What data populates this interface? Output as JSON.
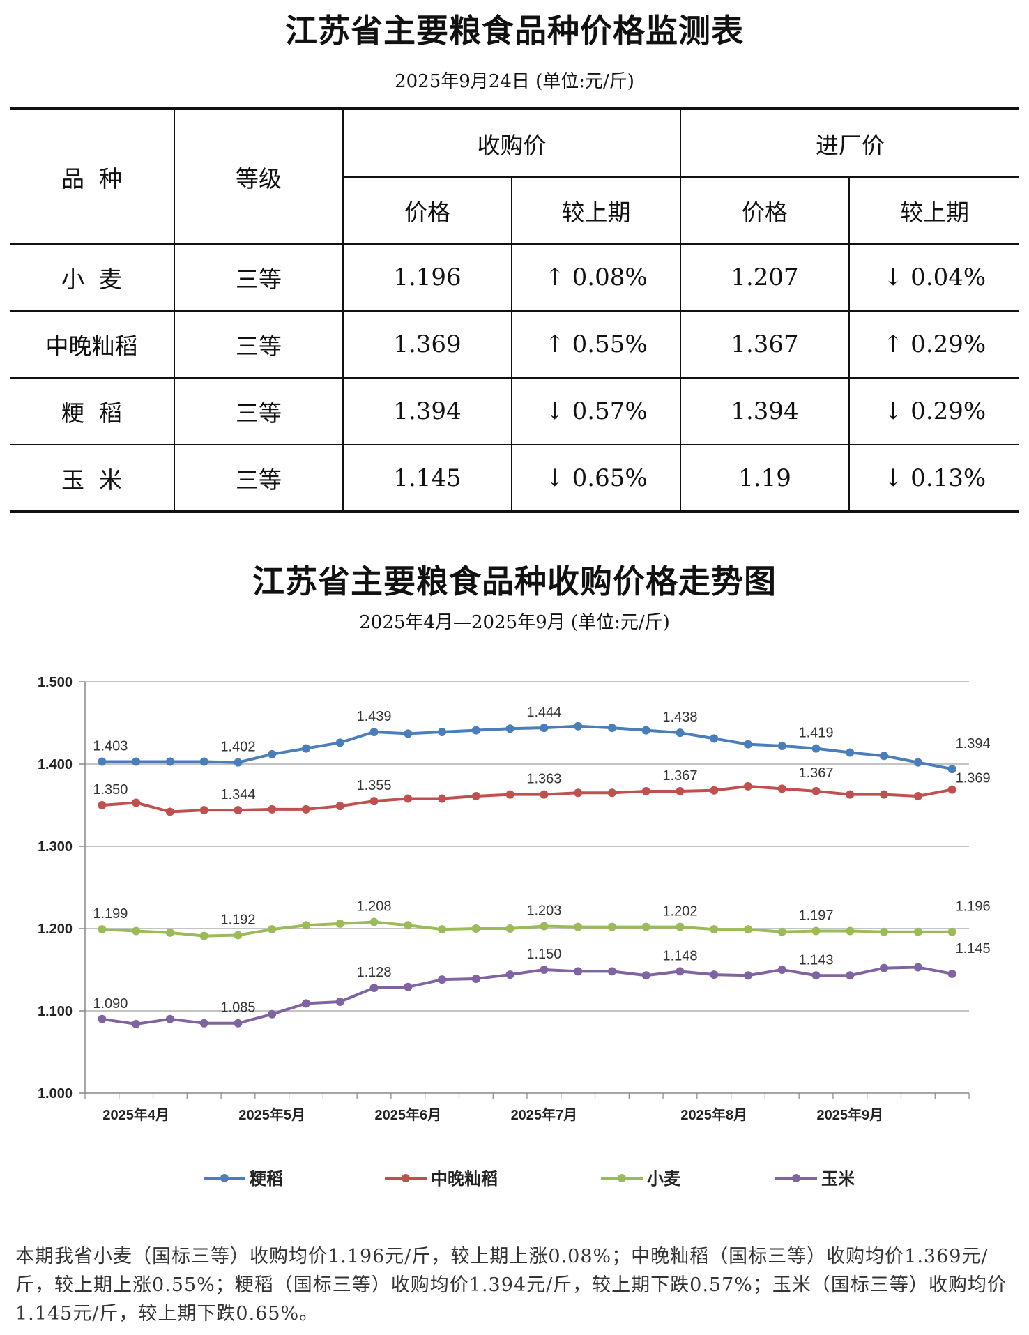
{
  "table_title": "江苏省主要粮食品种价格监测表",
  "table_subtitle": "2025年9月24日  (单位:元/斤)",
  "table": {
    "headers": {
      "variety": "品  种",
      "grade": "等级",
      "purchase": "收购价",
      "factory": "进厂价",
      "price": "价格",
      "change": "较上期"
    },
    "rows": [
      {
        "variety": "小  麦",
        "grade": "三等",
        "purchase_price": "1.196",
        "purchase_change": "↑ 0.08%",
        "factory_price": "1.207",
        "factory_change": "↓ 0.04%"
      },
      {
        "variety": "中晚籼稻",
        "grade": "三等",
        "purchase_price": "1.369",
        "purchase_change": "↑ 0.55%",
        "factory_price": "1.367",
        "factory_change": "↑ 0.29%"
      },
      {
        "variety": "粳  稻",
        "grade": "三等",
        "purchase_price": "1.394",
        "purchase_change": "↓ 0.57%",
        "factory_price": "1.394",
        "factory_change": "↓ 0.29%"
      },
      {
        "variety": "玉  米",
        "grade": "三等",
        "purchase_price": "1.145",
        "purchase_change": "↓ 0.65%",
        "factory_price": "1.19",
        "factory_change": "↓ 0.13%"
      }
    ]
  },
  "chart_title": "江苏省主要粮食品种收购价格走势图",
  "chart_subtitle": "2025年4月—2025年9月  (单位:元/斤)",
  "chart_data": {
    "type": "line",
    "ylim": [
      1.0,
      1.5
    ],
    "yticks": [
      "1.000",
      "1.100",
      "1.200",
      "1.300",
      "1.400",
      "1.500"
    ],
    "grid": true,
    "legend_position": "bottom",
    "x": [
      1,
      2,
      3,
      4,
      5,
      6,
      7,
      8,
      9,
      10,
      11,
      12,
      13,
      14,
      15,
      16,
      17,
      18,
      19,
      20,
      21,
      22,
      23,
      24,
      25,
      26
    ],
    "month_labels": [
      {
        "label": "2025年4月",
        "at": 2
      },
      {
        "label": "2025年5月",
        "at": 6
      },
      {
        "label": "2025年6月",
        "at": 10
      },
      {
        "label": "2025年7月",
        "at": 14
      },
      {
        "label": "2025年8月",
        "at": 19
      },
      {
        "label": "2025年9月",
        "at": 23
      }
    ],
    "series": [
      {
        "name": "粳稻",
        "color": "#4a7ebb",
        "values": [
          1.403,
          1.403,
          1.403,
          1.403,
          1.402,
          1.412,
          1.419,
          1.426,
          1.439,
          1.437,
          1.439,
          1.441,
          1.443,
          1.444,
          1.446,
          1.444,
          1.441,
          1.438,
          1.431,
          1.424,
          1.422,
          1.419,
          1.414,
          1.41,
          1.402,
          1.394
        ],
        "labels": [
          {
            "i": 0,
            "text": "1.403"
          },
          {
            "i": 4,
            "text": "1.402"
          },
          {
            "i": 8,
            "text": "1.439"
          },
          {
            "i": 13,
            "text": "1.444"
          },
          {
            "i": 17,
            "text": "1.438"
          },
          {
            "i": 21,
            "text": "1.419"
          },
          {
            "i": 25,
            "text": "1.394"
          }
        ]
      },
      {
        "name": "中晚籼稻",
        "color": "#c0504d",
        "values": [
          1.35,
          1.353,
          1.342,
          1.344,
          1.344,
          1.345,
          1.345,
          1.349,
          1.355,
          1.358,
          1.358,
          1.361,
          1.363,
          1.363,
          1.365,
          1.365,
          1.367,
          1.367,
          1.368,
          1.373,
          1.37,
          1.367,
          1.363,
          1.363,
          1.361,
          1.369
        ],
        "labels": [
          {
            "i": 0,
            "text": "1.350"
          },
          {
            "i": 4,
            "text": "1.344"
          },
          {
            "i": 8,
            "text": "1.355"
          },
          {
            "i": 13,
            "text": "1.363"
          },
          {
            "i": 17,
            "text": "1.367"
          },
          {
            "i": 21,
            "text": "1.367"
          },
          {
            "i": 25,
            "text": "1.369"
          }
        ]
      },
      {
        "name": "小麦",
        "color": "#9bbb59",
        "values": [
          1.199,
          1.197,
          1.195,
          1.191,
          1.192,
          1.199,
          1.204,
          1.206,
          1.208,
          1.204,
          1.199,
          1.2,
          1.2,
          1.203,
          1.202,
          1.202,
          1.202,
          1.202,
          1.199,
          1.199,
          1.196,
          1.197,
          1.197,
          1.196,
          1.196,
          1.196
        ],
        "labels": [
          {
            "i": 0,
            "text": "1.199"
          },
          {
            "i": 4,
            "text": "1.192"
          },
          {
            "i": 8,
            "text": "1.208"
          },
          {
            "i": 13,
            "text": "1.203"
          },
          {
            "i": 17,
            "text": "1.202"
          },
          {
            "i": 21,
            "text": "1.197"
          },
          {
            "i": 25,
            "text": "1.196"
          }
        ]
      },
      {
        "name": "玉米",
        "color": "#8064a2",
        "values": [
          1.09,
          1.084,
          1.09,
          1.085,
          1.085,
          1.096,
          1.109,
          1.111,
          1.128,
          1.129,
          1.138,
          1.139,
          1.144,
          1.15,
          1.148,
          1.148,
          1.143,
          1.148,
          1.144,
          1.143,
          1.15,
          1.143,
          1.143,
          1.152,
          1.153,
          1.145
        ],
        "labels": [
          {
            "i": 0,
            "text": "1.090"
          },
          {
            "i": 4,
            "text": "1.085"
          },
          {
            "i": 8,
            "text": "1.128"
          },
          {
            "i": 13,
            "text": "1.150"
          },
          {
            "i": 17,
            "text": "1.148"
          },
          {
            "i": 21,
            "text": "1.143"
          },
          {
            "i": 25,
            "text": "1.145"
          }
        ]
      }
    ]
  },
  "note": "本期我省小麦（国标三等）收购均价1.196元/斤，较上期上涨0.08%；中晚籼稻（国标三等）收购均价1.369元/斤，较上期上涨0.55%；粳稻（国标三等）收购均价1.394元/斤，较上期下跌0.57%；玉米（国标三等）收购均价1.145元/斤，较上期下跌0.65%。"
}
